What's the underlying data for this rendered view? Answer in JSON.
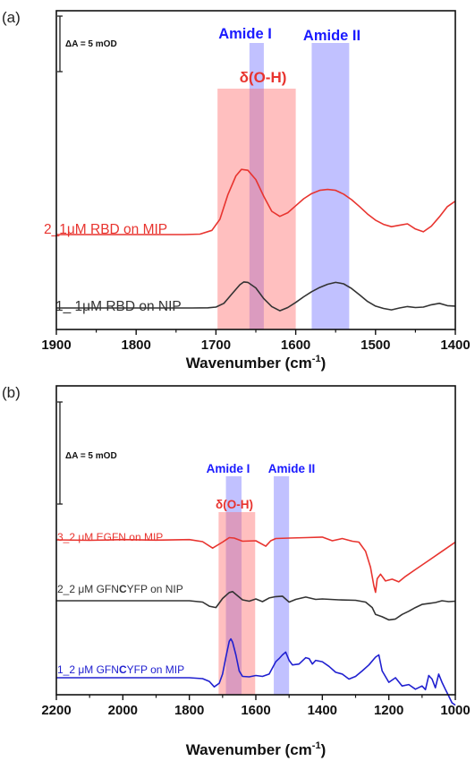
{
  "chart_data": [
    {
      "type": "line",
      "panel_label": "(a)",
      "xlabel": "Wavenumber",
      "xlabel_unit": "(cm",
      "xlabel_sup": "-1",
      "xlabel_close": ")",
      "xlim": [
        1900,
        1400
      ],
      "x_reversed": true,
      "xticks": [
        "1900",
        "1800",
        "1700",
        "1600",
        "1500",
        "1400"
      ],
      "scale_bar_label": "ΔA = 5 mOD",
      "scale_bar_value_mOD": 5,
      "bands": [
        {
          "label": "Amide I",
          "range": [
            1658,
            1640
          ],
          "color": "#6b6bff"
        },
        {
          "label": "Amide II",
          "range": [
            1580,
            1533
          ],
          "color": "#6b6bff"
        },
        {
          "label": "δ(O-H)",
          "range": [
            1698,
            1600
          ],
          "color": "#ff6666"
        }
      ],
      "series": [
        {
          "name": "2_1μM RBD on MIP",
          "color": "#e8342f",
          "x": [
            1900,
            1850,
            1800,
            1760,
            1740,
            1720,
            1705,
            1695,
            1685,
            1675,
            1668,
            1660,
            1650,
            1640,
            1630,
            1620,
            1610,
            1600,
            1590,
            1580,
            1570,
            1560,
            1550,
            1540,
            1530,
            1520,
            1510,
            1500,
            1490,
            1480,
            1470,
            1460,
            1450,
            1440,
            1430,
            1420,
            1410,
            1400
          ],
          "y": [
            0,
            0,
            0,
            0,
            0,
            0.05,
            0.45,
            1.65,
            4.3,
            6.3,
            7.0,
            6.9,
            5.9,
            4.1,
            2.5,
            1.95,
            2.35,
            3.1,
            3.85,
            4.4,
            4.75,
            4.85,
            4.75,
            4.35,
            3.75,
            3.0,
            2.2,
            1.55,
            1.1,
            0.85,
            1.0,
            1.15,
            0.6,
            0.3,
            0.9,
            1.9,
            3.0,
            3.6
          ]
        },
        {
          "name": "1_ 1μM RBD on NIP",
          "color": "#333333",
          "x": [
            1900,
            1850,
            1800,
            1760,
            1730,
            1710,
            1700,
            1690,
            1680,
            1670,
            1665,
            1660,
            1650,
            1640,
            1630,
            1620,
            1610,
            1600,
            1590,
            1580,
            1570,
            1560,
            1550,
            1540,
            1530,
            1520,
            1510,
            1500,
            1490,
            1480,
            1470,
            1460,
            1450,
            1440,
            1430,
            1420,
            1410,
            1400
          ],
          "y": [
            0,
            0,
            0,
            0,
            0,
            0.02,
            0.1,
            0.5,
            1.5,
            2.5,
            2.8,
            2.75,
            2.15,
            1.0,
            0.15,
            -0.3,
            0.05,
            0.6,
            1.2,
            1.75,
            2.2,
            2.55,
            2.75,
            2.6,
            2.1,
            1.4,
            0.7,
            0.2,
            -0.05,
            -0.2,
            0.0,
            0.15,
            0.05,
            0.1,
            0.35,
            0.5,
            0.25,
            0.2
          ]
        }
      ]
    },
    {
      "type": "line",
      "panel_label": "(b)",
      "xlabel": "Wavenumber",
      "xlabel_unit": "(cm",
      "xlabel_sup": "-1",
      "xlabel_close": ")",
      "xlim": [
        2200,
        1000
      ],
      "x_reversed": true,
      "xticks": [
        "2200",
        "2000",
        "1800",
        "1600",
        "1400",
        "1200",
        "1000"
      ],
      "scale_bar_label": "ΔA = 5 mOD",
      "scale_bar_value_mOD": 5,
      "bands": [
        {
          "label": "Amide I",
          "range": [
            1690,
            1643
          ],
          "color": "#6b6bff"
        },
        {
          "label": "Amide II",
          "range": [
            1546,
            1500
          ],
          "color": "#6b6bff"
        },
        {
          "label": "δ(O-H)",
          "range": [
            1712,
            1602
          ],
          "color": "#ff6666"
        }
      ],
      "series": [
        {
          "name": "3_2 μM EGFN on MIP",
          "color": "#e8342f",
          "x": [
            2200,
            2100,
            2000,
            1900,
            1800,
            1760,
            1730,
            1700,
            1680,
            1665,
            1640,
            1600,
            1570,
            1555,
            1540,
            1500,
            1450,
            1400,
            1370,
            1340,
            1310,
            1290,
            1270,
            1255,
            1245,
            1240,
            1235,
            1225,
            1210,
            1190,
            1170,
            1150,
            1120,
            1080,
            1040,
            1000
          ],
          "y": [
            0,
            -0.1,
            0.05,
            -0.05,
            0.05,
            -0.4,
            -1.8,
            -0.5,
            0.5,
            0.4,
            -0.3,
            -0.2,
            -1.4,
            -0.2,
            0.3,
            0.4,
            0.5,
            0.6,
            -0.2,
            0.3,
            -0.3,
            -0.5,
            -2.5,
            -6.0,
            -10.0,
            -11.5,
            -8.5,
            -7.5,
            -9.0,
            -8.6,
            -9.2,
            -8.0,
            -6.5,
            -4.5,
            -2.5,
            -0.5
          ]
        },
        {
          "name": "2_2 μM GFNCYFP on NIP",
          "color": "#333333",
          "name_bold_char": "C",
          "x": [
            2200,
            2100,
            2000,
            1900,
            1800,
            1760,
            1740,
            1720,
            1700,
            1680,
            1670,
            1660,
            1640,
            1620,
            1600,
            1580,
            1560,
            1540,
            1520,
            1500,
            1480,
            1450,
            1420,
            1400,
            1350,
            1300,
            1270,
            1250,
            1240,
            1220,
            1200,
            1180,
            1160,
            1140,
            1120,
            1100,
            1080,
            1060,
            1040,
            1020,
            1000
          ],
          "y": [
            0,
            0,
            0,
            0,
            0,
            -0.3,
            -1.2,
            -1.5,
            0.5,
            1.8,
            2.0,
            1.4,
            0.2,
            -0.1,
            0.4,
            -0.2,
            0.6,
            0.9,
            1.0,
            -0.3,
            0.3,
            0.8,
            0.3,
            0.4,
            0.2,
            0.1,
            -0.3,
            -1.5,
            -3.0,
            -3.5,
            -4.2,
            -4.0,
            -3.0,
            -2.3,
            -1.5,
            -0.8,
            -0.6,
            -0.4,
            0.0,
            -0.2,
            -0.1
          ]
        },
        {
          "name": "1_2 μM GFNCYFP on MIP",
          "color": "#2020d0",
          "name_bold_char": "C",
          "x": [
            2200,
            2100,
            2000,
            1900,
            1800,
            1760,
            1740,
            1725,
            1710,
            1700,
            1690,
            1680,
            1675,
            1670,
            1660,
            1650,
            1640,
            1620,
            1600,
            1580,
            1560,
            1540,
            1530,
            1520,
            1510,
            1500,
            1490,
            1470,
            1450,
            1440,
            1430,
            1420,
            1400,
            1380,
            1360,
            1340,
            1320,
            1300,
            1280,
            1260,
            1240,
            1230,
            1220,
            1200,
            1180,
            1160,
            1140,
            1120,
            1100,
            1090,
            1080,
            1070,
            1060,
            1050,
            1040,
            1030,
            1020,
            1010,
            1000
          ],
          "y": [
            0,
            0,
            0,
            0,
            0,
            -0.2,
            -0.8,
            -2.0,
            -1.2,
            0.8,
            4.5,
            8.0,
            8.5,
            7.8,
            5.0,
            1.5,
            0.3,
            0.2,
            0.5,
            0.3,
            0.8,
            3.5,
            4.2,
            5.0,
            5.6,
            3.8,
            2.8,
            3.0,
            4.4,
            4.2,
            3.0,
            3.8,
            3.5,
            2.5,
            1.2,
            0.8,
            -0.3,
            0.3,
            1.5,
            2.8,
            4.5,
            5.0,
            1.5,
            -1.0,
            0.0,
            -1.8,
            -1.5,
            -2.5,
            -1.8,
            -2.6,
            0.5,
            -0.3,
            -2.2,
            0.8,
            -1.0,
            -2.5,
            -4.0,
            -5.5,
            -6.0
          ]
        }
      ]
    }
  ]
}
